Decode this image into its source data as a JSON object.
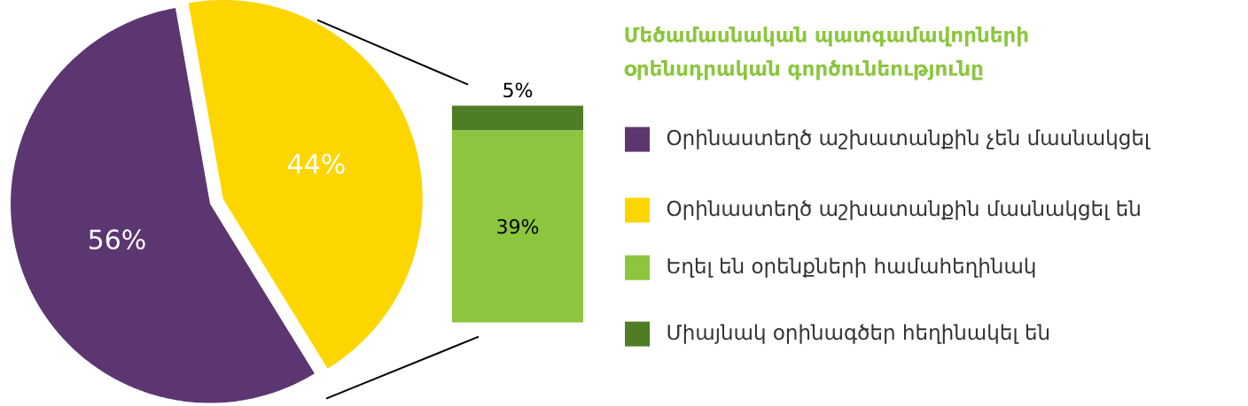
{
  "chart_data": [
    {
      "type": "pie",
      "title": "Մեծամասնական պատգամավորների օրենսդրական գործունեությունը",
      "categories": [
        "Օրինաստեղծ աշխատանքին չեն մասնակցել",
        "Օրինաստեղծ աշխատանքին մասնակցել են"
      ],
      "values": [
        56,
        44
      ],
      "colors": [
        "#5c3670",
        "#fdd600"
      ],
      "value_labels": [
        "56%",
        "44%"
      ],
      "legend": "right"
    },
    {
      "type": "bar",
      "stacked": true,
      "categories": [
        null
      ],
      "legend": "right",
      "series": [
        {
          "name": "Եղել են օրենքների համահեղինակ",
          "color": "#8cc63f",
          "values": [
            39
          ],
          "value_labels": [
            "39%"
          ]
        },
        {
          "name": "Միայնակ օրինագծեր հեղինակել են",
          "color": "#4e7d26",
          "values": [
            5
          ],
          "value_labels": [
            "5%"
          ]
        }
      ]
    }
  ]
}
